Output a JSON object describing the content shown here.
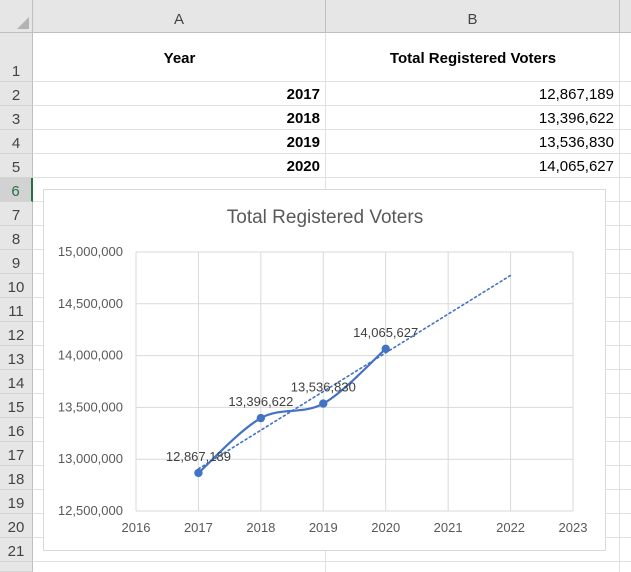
{
  "spreadsheet": {
    "columns": [
      "A",
      "B"
    ],
    "rows": [
      "1",
      "2",
      "3",
      "4",
      "5",
      "6",
      "7",
      "8",
      "9",
      "10",
      "11",
      "12",
      "13",
      "14",
      "15",
      "16",
      "17",
      "18",
      "19",
      "20",
      "21",
      ""
    ],
    "selected_row": "6",
    "header": {
      "a": "Year",
      "b": "Total Registered Voters"
    },
    "data": [
      {
        "year": "2017",
        "voters": "12,867,189"
      },
      {
        "year": "2018",
        "voters": "13,396,622"
      },
      {
        "year": "2019",
        "voters": "13,536,830"
      },
      {
        "year": "2020",
        "voters": "14,065,627"
      }
    ]
  },
  "chart_data": {
    "type": "scatter",
    "title": "Total Registered Voters",
    "xlabel": "",
    "ylabel": "",
    "x": [
      2017,
      2018,
      2019,
      2020
    ],
    "series": [
      {
        "values": [
          12867189,
          13396622,
          13536830,
          14065627
        ]
      }
    ],
    "data_labels": [
      "12,867,189",
      "13,396,622",
      "13,536,830",
      "14,065,627"
    ],
    "xlim": [
      2016,
      2023
    ],
    "ylim": [
      12500000,
      15000000
    ],
    "x_ticks": [
      "2016",
      "2017",
      "2018",
      "2019",
      "2020",
      "2021",
      "2022",
      "2023"
    ],
    "y_ticks": [
      "12,500,000",
      "13,000,000",
      "13,500,000",
      "14,000,000",
      "14,500,000",
      "15,000,000"
    ],
    "line": "smoothed",
    "trendline": {
      "style": "dotted",
      "type": "linear",
      "forecast_to": 2022
    },
    "grid": true,
    "legend": "none",
    "colors": {
      "series": "#4472c4",
      "trendline": "#4472c4",
      "grid": "#d9d9d9",
      "text": "#595959"
    }
  }
}
